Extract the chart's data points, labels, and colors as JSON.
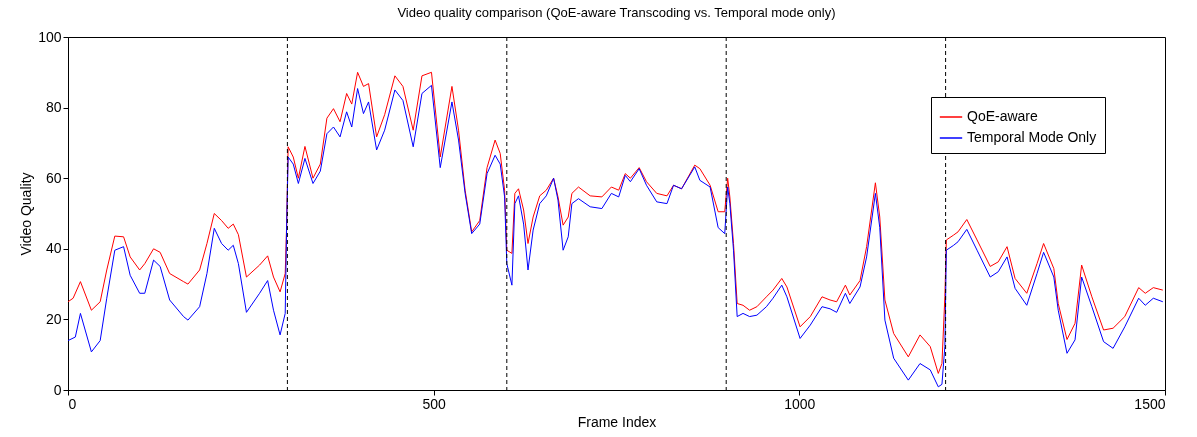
{
  "chart_data": {
    "type": "line",
    "title": "Video quality comparison (QoE-aware Transcoding vs. Temporal mode only)",
    "xlabel": "Frame Index",
    "ylabel": "Video Quality",
    "xlim": [
      0,
      1500
    ],
    "xticks": [
      0,
      500,
      1000,
      1500
    ],
    "ylim": [
      0,
      100
    ],
    "yticks": [
      0,
      20,
      40,
      60,
      80,
      100
    ],
    "legend": "top right",
    "line_style": "solid",
    "series": [
      {
        "name": "QoE-aware",
        "color": "#ff0000",
        "x": [
          0,
          7,
          17,
          32,
          44,
          53,
          64,
          76,
          85,
          98,
          105,
          117,
          126,
          139,
          158,
          164,
          180,
          190,
          200,
          210,
          219,
          226,
          233,
          244,
          262,
          273,
          281,
          290,
          297,
          299,
          301,
          308,
          315,
          324,
          335,
          345,
          354,
          363,
          372,
          381,
          388,
          396,
          404,
          411,
          422,
          433,
          447,
          458,
          472,
          484,
          497,
          509,
          525,
          534,
          543,
          552,
          563,
          573,
          584,
          591,
          597,
          600,
          607,
          611,
          616,
          623,
          629,
          636,
          645,
          654,
          664,
          670,
          677,
          684,
          689,
          698,
          714,
          730,
          743,
          753,
          762,
          769,
          781,
          791,
          805,
          819,
          828,
          839,
          857,
          864,
          878,
          889,
          898,
          902,
          905,
          910,
          915,
          923,
          932,
          942,
          955,
          964,
          976,
          983,
          1001,
          1015,
          1031,
          1042,
          1051,
          1063,
          1069,
          1083,
          1092,
          1104,
          1110,
          1117,
          1129,
          1149,
          1165,
          1179,
          1190,
          1195,
          1199,
          1201,
          1211,
          1217,
          1229,
          1243,
          1261,
          1272,
          1284,
          1295,
          1311,
          1325,
          1334,
          1348,
          1354,
          1366,
          1377,
          1386,
          1400,
          1416,
          1429,
          1445,
          1464,
          1473,
          1484,
          1497
        ],
        "values": [
          25,
          26,
          30.7,
          22.6,
          25,
          34,
          43.6,
          43.4,
          37.7,
          34,
          35.8,
          40,
          39,
          33,
          30.7,
          30,
          34,
          41.5,
          50,
          48,
          45.8,
          47,
          44,
          32,
          35.4,
          38,
          32,
          27.8,
          33,
          47,
          68.9,
          66,
          60,
          69,
          60,
          64,
          77,
          79.7,
          76,
          84,
          81,
          90,
          86,
          86.8,
          71.7,
          78,
          89,
          86,
          73.6,
          89,
          90,
          66,
          86,
          73.6,
          56.6,
          44.8,
          48,
          63,
          70.8,
          67,
          56.6,
          39.6,
          38.7,
          55.7,
          57,
          51,
          41.5,
          49,
          55,
          56.6,
          60,
          54.7,
          46.7,
          49,
          55.7,
          57.5,
          55,
          54.7,
          57.5,
          56.6,
          61.3,
          60,
          63,
          59,
          55.7,
          55,
          58,
          57,
          63.7,
          62.7,
          58,
          50.5,
          50.5,
          60,
          54.7,
          41.5,
          24.5,
          24,
          22.6,
          23.6,
          26.4,
          28.3,
          31.6,
          29.2,
          17.9,
          20.8,
          26.4,
          25.5,
          25,
          29.7,
          26.9,
          31,
          40.6,
          58.7,
          49,
          25.5,
          16,
          9.4,
          15.6,
          12.3,
          4.7,
          7.5,
          26.4,
          42.5,
          43.9,
          44.8,
          48.3,
          42.5,
          35,
          36.3,
          40.6,
          31.6,
          27.4,
          35.8,
          41.5,
          34.4,
          24.5,
          14.3,
          18.9,
          35.4,
          26.4,
          17,
          17.5,
          20.8,
          29,
          27.4,
          29,
          28.3
        ]
      },
      {
        "name": "Temporal Mode Only",
        "color": "#0000ff",
        "x": [
          0,
          10,
          17,
          32,
          44,
          53,
          64,
          76,
          85,
          98,
          105,
          117,
          126,
          139,
          158,
          164,
          180,
          190,
          200,
          210,
          219,
          226,
          233,
          244,
          262,
          273,
          281,
          290,
          297,
          299,
          301,
          308,
          315,
          324,
          335,
          345,
          354,
          363,
          372,
          381,
          388,
          396,
          404,
          411,
          422,
          433,
          447,
          458,
          472,
          484,
          497,
          509,
          525,
          534,
          543,
          552,
          563,
          573,
          584,
          591,
          597,
          600,
          607,
          611,
          616,
          623,
          629,
          636,
          645,
          654,
          664,
          670,
          677,
          684,
          689,
          698,
          714,
          730,
          743,
          753,
          762,
          769,
          781,
          791,
          805,
          819,
          828,
          839,
          857,
          864,
          878,
          889,
          898,
          902,
          905,
          910,
          915,
          923,
          932,
          942,
          955,
          964,
          976,
          983,
          1001,
          1015,
          1031,
          1042,
          1051,
          1063,
          1069,
          1083,
          1092,
          1104,
          1110,
          1117,
          1129,
          1149,
          1165,
          1179,
          1190,
          1195,
          1199,
          1201,
          1211,
          1217,
          1229,
          1243,
          1261,
          1272,
          1284,
          1295,
          1311,
          1325,
          1334,
          1348,
          1354,
          1366,
          1377,
          1386,
          1400,
          1416,
          1429,
          1445,
          1464,
          1473,
          1484,
          1497
        ],
        "values": [
          14,
          15,
          21.7,
          10.8,
          14,
          26,
          39.6,
          40.6,
          32.5,
          27.4,
          27.4,
          36.8,
          35,
          25.5,
          20.8,
          19.8,
          23.6,
          33,
          45.8,
          41.5,
          39.6,
          41,
          35.8,
          22,
          27.4,
          31,
          22.6,
          15.6,
          21.7,
          47,
          66,
          64,
          58.5,
          65.6,
          58.5,
          62,
          72.6,
          74.5,
          71.7,
          78.8,
          74.5,
          85.4,
          78.3,
          81.6,
          68,
          73.6,
          85,
          82,
          68.9,
          84,
          86.3,
          63,
          81.6,
          70.8,
          55.7,
          44.3,
          47,
          61.3,
          66.5,
          64,
          54.7,
          35.8,
          29.7,
          52.8,
          55,
          47,
          34,
          45.3,
          52.8,
          55,
          60,
          53.8,
          39.6,
          43.4,
          52.8,
          54.2,
          51.9,
          51.4,
          55.7,
          54.7,
          60.8,
          59,
          62.7,
          58,
          53.3,
          52.8,
          58,
          57,
          63.2,
          59.4,
          57.5,
          46,
          44.3,
          57.5,
          52.8,
          39.6,
          20.8,
          21.7,
          20.8,
          21.2,
          23.6,
          26,
          29.7,
          26.4,
          14.6,
          18.4,
          23.6,
          23,
          22,
          27.4,
          24.5,
          29.2,
          37.7,
          55.7,
          46,
          19.8,
          9,
          2.8,
          7.5,
          5.7,
          0.9,
          1.6,
          12.3,
          39.6,
          41,
          42,
          45.5,
          39.6,
          32,
          33.5,
          37.7,
          28.8,
          24,
          33,
          39,
          32,
          22.6,
          10.4,
          14.2,
          32,
          23.6,
          13.7,
          11.8,
          17.9,
          26,
          24,
          26,
          25
        ]
      }
    ],
    "ref_lines": [
      {
        "axis": "x",
        "value": 300,
        "color": "#000000",
        "line_style": "dashed"
      },
      {
        "axis": "x",
        "value": 600,
        "color": "#000000",
        "line_style": "dashed"
      },
      {
        "axis": "x",
        "value": 900,
        "color": "#000000",
        "line_style": "dashed"
      },
      {
        "axis": "x",
        "value": 1200,
        "color": "#000000",
        "line_style": "dashed"
      }
    ]
  }
}
